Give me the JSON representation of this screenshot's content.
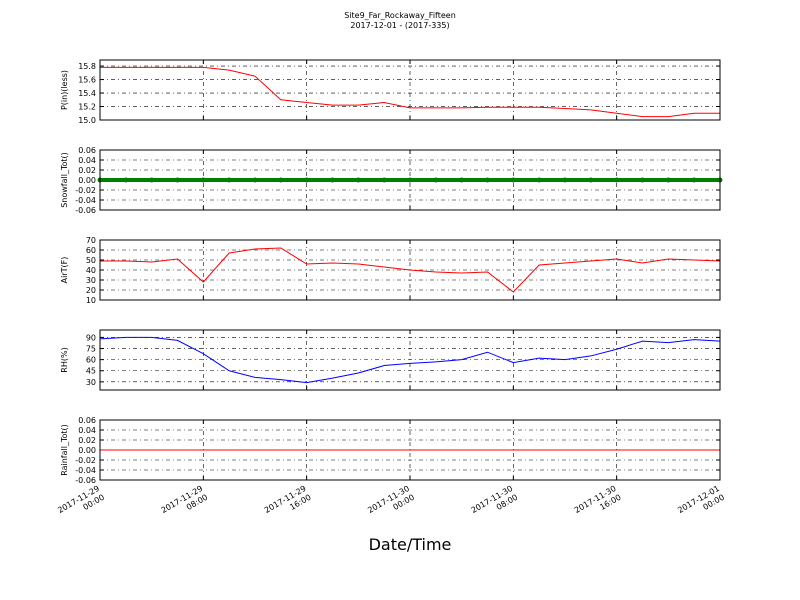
{
  "chart_data": [
    {
      "type": "line",
      "title": "Site9_Far_Rockaway_Fifteen",
      "subtitle": "2017-12-01 - (2017-335)",
      "ylabel": "P(in)(less)",
      "color": "#ff0000",
      "x": [
        "2017-11-29 00:00",
        "2017-11-29 02:00",
        "2017-11-29 04:00",
        "2017-11-29 06:00",
        "2017-11-29 08:00",
        "2017-11-29 10:00",
        "2017-11-29 12:00",
        "2017-11-29 14:00",
        "2017-11-29 16:00",
        "2017-11-29 18:00",
        "2017-11-29 20:00",
        "2017-11-29 22:00",
        "2017-11-30 00:00",
        "2017-11-30 02:00",
        "2017-11-30 04:00",
        "2017-11-30 06:00",
        "2017-11-30 08:00",
        "2017-11-30 10:00",
        "2017-11-30 12:00",
        "2017-11-30 14:00",
        "2017-11-30 16:00",
        "2017-11-30 18:00",
        "2017-11-30 20:00",
        "2017-11-30 22:00",
        "2017-12-01 00:00"
      ],
      "values": [
        15.78,
        15.78,
        15.78,
        15.78,
        15.78,
        15.74,
        15.65,
        15.3,
        15.26,
        15.22,
        15.22,
        15.26,
        15.18,
        15.18,
        15.18,
        15.19,
        15.19,
        15.19,
        15.17,
        15.15,
        15.1,
        15.05,
        15.05,
        15.1,
        15.1
      ],
      "xlim": [
        "2017-11-29 00:00",
        "2017-12-01 00:00"
      ],
      "xticks": [
        "2017-11-29 00:00",
        "2017-11-29 08:00",
        "2017-11-29 16:00",
        "2017-11-30 00:00",
        "2017-11-30 08:00",
        "2017-11-30 16:00",
        "2017-12-01 00:00"
      ],
      "ylim": [
        15.0,
        15.89
      ],
      "yticks": [
        {
          "value": 15.0,
          "label": "15.0"
        },
        15.2,
        15.4,
        15.6,
        15.8
      ],
      "grid": true
    },
    {
      "type": "line",
      "ylabel": "Snowfall_Tot()",
      "color": "#007f00",
      "markers": true,
      "x": [
        "2017-11-29 00:00",
        "2017-11-29 02:00",
        "2017-11-29 04:00",
        "2017-11-29 06:00",
        "2017-11-29 08:00",
        "2017-11-29 10:00",
        "2017-11-29 12:00",
        "2017-11-29 14:00",
        "2017-11-29 16:00",
        "2017-11-29 18:00",
        "2017-11-29 20:00",
        "2017-11-29 22:00",
        "2017-11-30 00:00",
        "2017-11-30 02:00",
        "2017-11-30 04:00",
        "2017-11-30 06:00",
        "2017-11-30 08:00",
        "2017-11-30 10:00",
        "2017-11-30 12:00",
        "2017-11-30 14:00",
        "2017-11-30 16:00",
        "2017-11-30 18:00",
        "2017-11-30 20:00",
        "2017-11-30 22:00",
        "2017-12-01 00:00"
      ],
      "values": [
        0,
        0,
        0,
        0,
        0,
        0,
        0,
        0,
        0,
        0,
        0,
        0,
        0,
        0,
        0,
        0,
        0,
        0,
        0,
        0,
        0,
        0,
        0,
        0,
        0
      ],
      "xlim": [
        "2017-11-29 00:00",
        "2017-12-01 00:00"
      ],
      "xticks": [
        "2017-11-29 00:00",
        "2017-11-29 08:00",
        "2017-11-29 16:00",
        "2017-11-30 00:00",
        "2017-11-30 08:00",
        "2017-11-30 16:00",
        "2017-12-01 00:00"
      ],
      "ylim": [
        -0.06,
        0.06
      ],
      "yticks": [
        {
          "value": -0.06,
          "label": "-0.06"
        },
        {
          "value": -0.04,
          "label": "-0.04"
        },
        {
          "value": -0.02,
          "label": "-0.02"
        },
        {
          "value": 0,
          "label": "0.00"
        },
        {
          "value": 0.02,
          "label": "0.02"
        },
        {
          "value": 0.04,
          "label": "0.04"
        },
        {
          "value": 0.06,
          "label": "0.06"
        }
      ],
      "grid": true
    },
    {
      "type": "line",
      "ylabel": "AirT(F)",
      "color": "#ff0000",
      "x": [
        "2017-11-29 00:00",
        "2017-11-29 02:00",
        "2017-11-29 04:00",
        "2017-11-29 06:00",
        "2017-11-29 08:00",
        "2017-11-29 10:00",
        "2017-11-29 12:00",
        "2017-11-29 14:00",
        "2017-11-29 16:00",
        "2017-11-29 18:00",
        "2017-11-29 20:00",
        "2017-11-29 22:00",
        "2017-11-30 00:00",
        "2017-11-30 02:00",
        "2017-11-30 04:00",
        "2017-11-30 06:00",
        "2017-11-30 08:00",
        "2017-11-30 10:00",
        "2017-11-30 12:00",
        "2017-11-30 14:00",
        "2017-11-30 16:00",
        "2017-11-30 18:00",
        "2017-11-30 20:00",
        "2017-11-30 22:00",
        "2017-12-01 00:00"
      ],
      "values": [
        49,
        49,
        48,
        51,
        28,
        57,
        61,
        62,
        46,
        47,
        46,
        43,
        40,
        38,
        37,
        38,
        18,
        45,
        47,
        49,
        51,
        47,
        51,
        50,
        49
      ],
      "xlim": [
        "2017-11-29 00:00",
        "2017-12-01 00:00"
      ],
      "xticks": [
        "2017-11-29 00:00",
        "2017-11-29 08:00",
        "2017-11-29 16:00",
        "2017-11-30 00:00",
        "2017-11-30 08:00",
        "2017-11-30 16:00",
        "2017-12-01 00:00"
      ],
      "ylim": [
        10,
        70
      ],
      "yticks": [
        10,
        20,
        30,
        40,
        50,
        60,
        70
      ],
      "grid": true
    },
    {
      "type": "line",
      "ylabel": "RH(%)",
      "color": "#0000ff",
      "x": [
        "2017-11-29 00:00",
        "2017-11-29 02:00",
        "2017-11-29 04:00",
        "2017-11-29 06:00",
        "2017-11-29 08:00",
        "2017-11-29 10:00",
        "2017-11-29 12:00",
        "2017-11-29 14:00",
        "2017-11-29 16:00",
        "2017-11-29 18:00",
        "2017-11-29 20:00",
        "2017-11-29 22:00",
        "2017-11-30 00:00",
        "2017-11-30 02:00",
        "2017-11-30 04:00",
        "2017-11-30 06:00",
        "2017-11-30 08:00",
        "2017-11-30 10:00",
        "2017-11-30 12:00",
        "2017-11-30 14:00",
        "2017-11-30 16:00",
        "2017-11-30 18:00",
        "2017-11-30 20:00",
        "2017-11-30 22:00",
        "2017-12-01 00:00"
      ],
      "values": [
        88,
        90,
        90,
        86,
        68,
        45,
        36,
        33,
        29,
        35,
        42,
        52,
        55,
        57,
        60,
        70,
        56,
        62,
        60,
        65,
        74,
        85,
        83,
        87,
        85
      ],
      "xlim": [
        "2017-11-29 00:00",
        "2017-12-01 00:00"
      ],
      "xticks": [
        "2017-11-29 00:00",
        "2017-11-29 08:00",
        "2017-11-29 16:00",
        "2017-11-30 00:00",
        "2017-11-30 08:00",
        "2017-11-30 16:00",
        "2017-12-01 00:00"
      ],
      "ylim": [
        19,
        100
      ],
      "yticks": [
        30,
        45,
        60,
        75,
        90
      ],
      "grid": true
    },
    {
      "type": "line",
      "ylabel": "Rainfall_Tot()",
      "xlabel": "Date/Time",
      "color": "#ff0000",
      "show_xtick_labels": true,
      "x": [
        "2017-11-29 00:00",
        "2017-11-29 02:00",
        "2017-11-29 04:00",
        "2017-11-29 06:00",
        "2017-11-29 08:00",
        "2017-11-29 10:00",
        "2017-11-29 12:00",
        "2017-11-29 14:00",
        "2017-11-29 16:00",
        "2017-11-29 18:00",
        "2017-11-29 20:00",
        "2017-11-29 22:00",
        "2017-11-30 00:00",
        "2017-11-30 02:00",
        "2017-11-30 04:00",
        "2017-11-30 06:00",
        "2017-11-30 08:00",
        "2017-11-30 10:00",
        "2017-11-30 12:00",
        "2017-11-30 14:00",
        "2017-11-30 16:00",
        "2017-11-30 18:00",
        "2017-11-30 20:00",
        "2017-11-30 22:00",
        "2017-12-01 00:00"
      ],
      "values": [
        0,
        0,
        0,
        0,
        0,
        0,
        0,
        0,
        0,
        0,
        0,
        0,
        0,
        0,
        0,
        0,
        0,
        0,
        0,
        0,
        0,
        0,
        0,
        0,
        0
      ],
      "xlim": [
        "2017-11-29 00:00",
        "2017-12-01 00:00"
      ],
      "xticks": [
        "2017-11-29 00:00",
        "2017-11-29 08:00",
        "2017-11-29 16:00",
        "2017-11-30 00:00",
        "2017-11-30 08:00",
        "2017-11-30 16:00",
        "2017-12-01 00:00"
      ],
      "ylim": [
        -0.06,
        0.06
      ],
      "yticks": [
        {
          "value": -0.06,
          "label": "-0.06"
        },
        {
          "value": -0.04,
          "label": "-0.04"
        },
        {
          "value": -0.02,
          "label": "-0.02"
        },
        {
          "value": 0,
          "label": "0.00"
        },
        {
          "value": 0.02,
          "label": "0.02"
        },
        {
          "value": 0.04,
          "label": "0.04"
        },
        {
          "value": 0.06,
          "label": "0.06"
        }
      ],
      "grid": true
    }
  ]
}
